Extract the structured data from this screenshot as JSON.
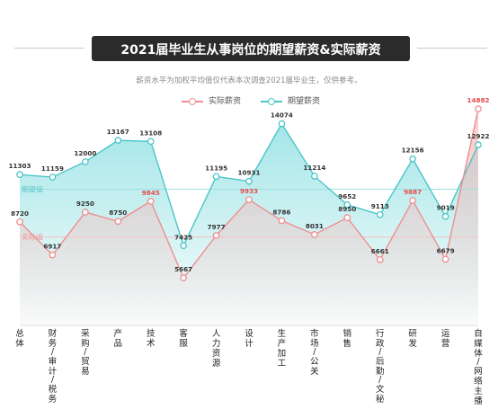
{
  "title": "2021届毕业生从事岗位的期望薪资&实际薪资",
  "subtitle": "薪资水平为加权平均值仅代表本次调查2021届毕业生，仅供参考。",
  "colors": {
    "actual_line": "#ee8f8f",
    "actual_fill": "#f6b8b8",
    "expected_line": "#4cc5c9",
    "expected_fill": "#86dde0",
    "peak_label": "#e94a4a"
  },
  "chart_data": {
    "type": "area",
    "categories": [
      "总体",
      "财务/审计/税务",
      "采购/贸易",
      "产品",
      "技术",
      "客服",
      "人力资源",
      "设计",
      "生产加工",
      "市场/公关",
      "销售",
      "行政/后勤/文秘",
      "研发",
      "运营",
      "自媒体/网络主播"
    ],
    "series": [
      {
        "name": "实际薪资",
        "values": [
          8720,
          6917,
          9250,
          8750,
          9845,
          5667,
          7977,
          9933,
          8786,
          8031,
          8950,
          6661,
          9887,
          6679,
          14882
        ]
      },
      {
        "name": "期望薪资",
        "values": [
          11303,
          11159,
          12000,
          13167,
          13108,
          7425,
          11195,
          10931,
          14074,
          11214,
          9652,
          9113,
          12156,
          9019,
          12922
        ]
      }
    ],
    "highlighted_actual_labels": [
      4,
      7,
      12,
      14
    ],
    "reference_lines": [
      {
        "label": "期望值",
        "value": 10500
      },
      {
        "label": "实际值",
        "value": 7900
      }
    ],
    "legend_position": "top-center",
    "grid": false
  }
}
